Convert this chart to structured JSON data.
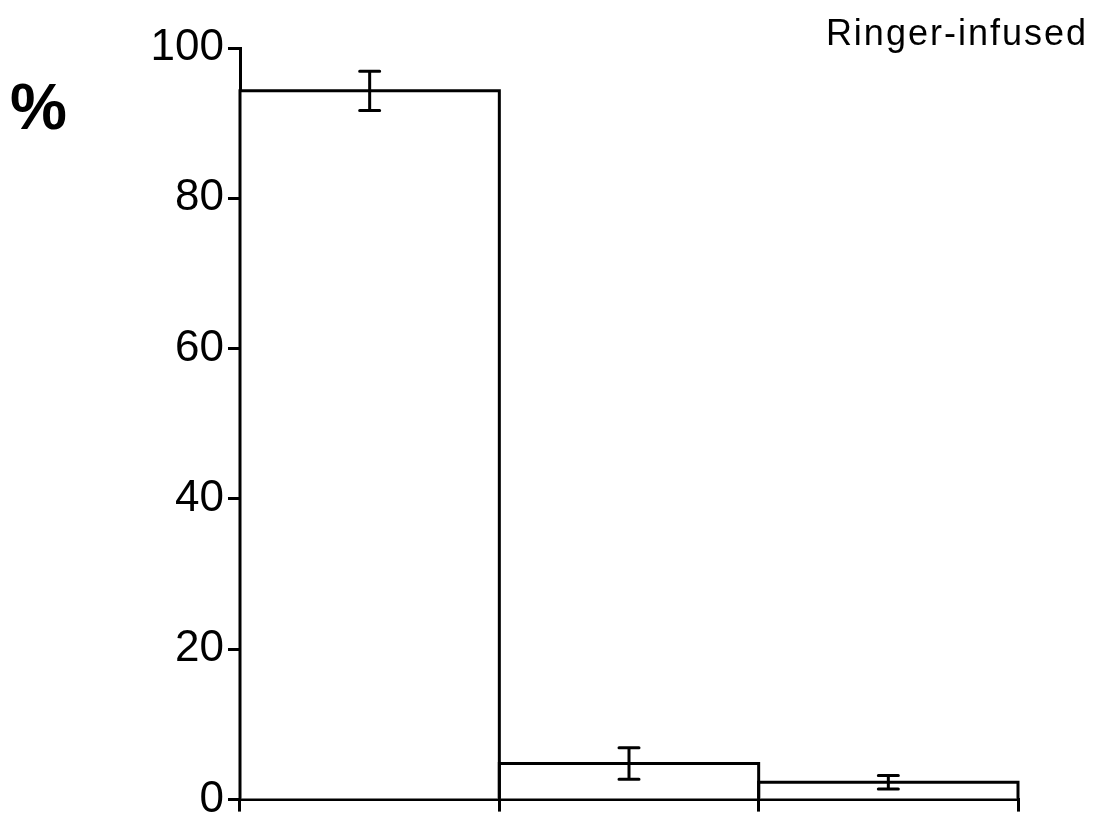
{
  "chart_data": {
    "type": "bar",
    "title": "Ringer-infused",
    "ylabel": "%",
    "categories": [
      null,
      null,
      null
    ],
    "values": [
      94.3,
      4.8,
      2.3
    ],
    "errors": [
      2.6,
      2.1,
      0.9
    ],
    "color": "#ffffff",
    "ylim": [
      0,
      100
    ],
    "yticks": [
      0,
      20,
      40,
      60,
      80,
      100
    ],
    "grid": false,
    "legend": false
  }
}
